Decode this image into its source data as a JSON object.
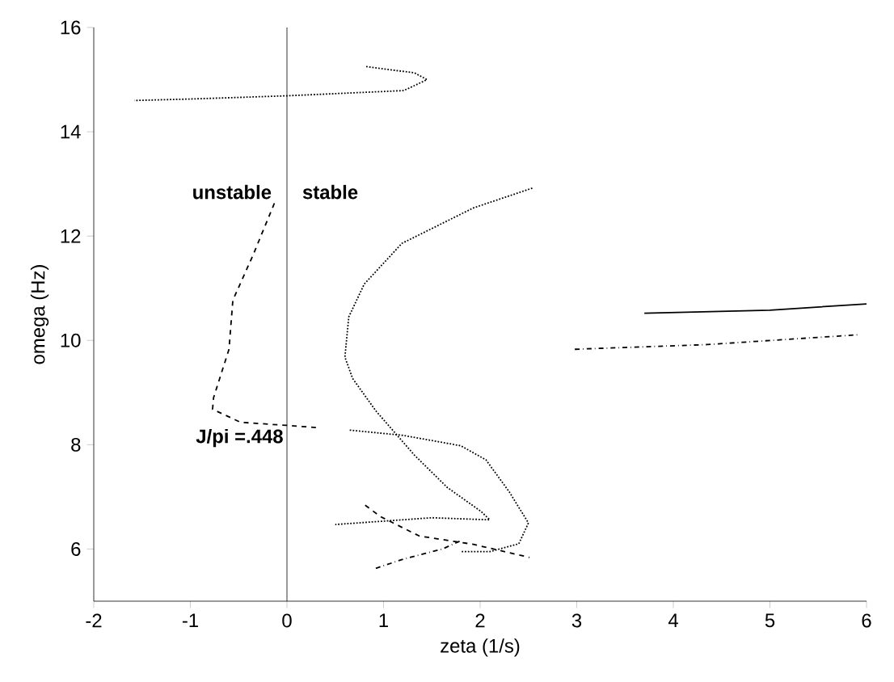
{
  "chart_data": {
    "type": "line",
    "xlabel": "zeta (1/s)",
    "ylabel": "omega (Hz)",
    "xlim": [
      -2,
      6
    ],
    "ylim": [
      5,
      16
    ],
    "xticks": [
      -2,
      -1,
      0,
      1,
      2,
      3,
      4,
      5,
      6
    ],
    "yticks": [
      6,
      8,
      10,
      12,
      14,
      16
    ],
    "grid": false,
    "marker": "none",
    "ref_lines": [
      {
        "axis": "x",
        "value": 0,
        "color": "#000000",
        "line_style": "solid"
      }
    ],
    "annotations": [
      "unstable",
      "stable",
      {
        "text": "J/pi =.448",
        "x": 0,
        "y": 8.37
      }
    ],
    "series": [
      {
        "color": "#000000",
        "line_style": "dotted",
        "x": [
          0.82,
          1.32,
          1.45,
          1.21,
          0,
          -0.97,
          -1.58
        ],
        "values": [
          15.25,
          15.13,
          15.0,
          14.79,
          14.69,
          14.63,
          14.6
        ]
      },
      {
        "color": "#000000",
        "line_style": "dashed",
        "x": [
          -0.13,
          -0.35,
          -0.56,
          -0.6,
          -0.76,
          -0.77,
          -0.48,
          0,
          0.3
        ],
        "values": [
          12.63,
          11.64,
          10.77,
          9.83,
          8.9,
          8.68,
          8.43,
          8.37,
          8.33
        ]
      },
      {
        "color": "#000000",
        "line_style": "dotted",
        "x": [
          0.65,
          1.2,
          1.8,
          2.06,
          2.3,
          2.5,
          2.4,
          2.1,
          1.8
        ],
        "values": [
          8.28,
          8.18,
          7.98,
          7.71,
          7.1,
          6.5,
          6.1,
          5.95,
          5.95
        ]
      },
      {
        "color": "#000000",
        "line_style": "dotted",
        "x": [
          2.54,
          1.93,
          1.19,
          0.8,
          0.64,
          0.6,
          0.68,
          0.92,
          1.32,
          1.66,
          2.01,
          2.1,
          1.5,
          0.5
        ],
        "values": [
          12.92,
          12.54,
          11.86,
          11.08,
          10.45,
          9.68,
          9.27,
          8.65,
          7.8,
          7.18,
          6.72,
          6.56,
          6.6,
          6.47
        ]
      },
      {
        "color": "#000000",
        "line_style": "dashed",
        "x": [
          0.81,
          0.97,
          1.37,
          1.93,
          2.51
        ],
        "values": [
          6.84,
          6.62,
          6.25,
          6.09,
          5.84
        ]
      },
      {
        "color": "#000000",
        "line_style": "dashdot",
        "x": [
          0.92,
          1.21,
          1.61,
          1.8
        ],
        "values": [
          5.63,
          5.81,
          6.0,
          6.16
        ]
      },
      {
        "color": "#000000",
        "line_style": "solid",
        "x": [
          3.7,
          5.0,
          6.0
        ],
        "values": [
          10.52,
          10.58,
          10.7
        ]
      },
      {
        "color": "#000000",
        "line_style": "dashdot",
        "x": [
          2.98,
          4.35,
          5.93
        ],
        "values": [
          9.83,
          9.92,
          10.11
        ]
      }
    ]
  }
}
